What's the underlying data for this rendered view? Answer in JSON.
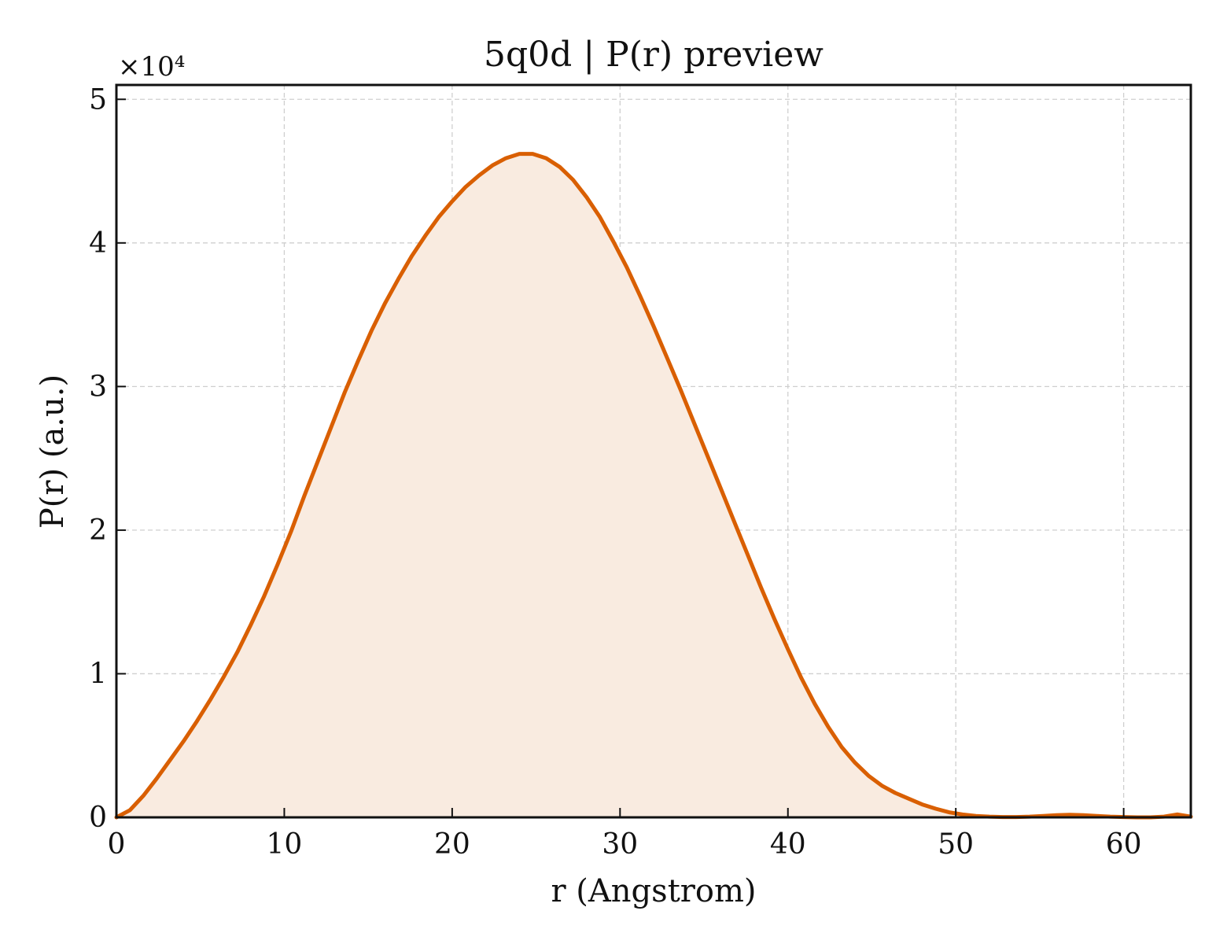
{
  "chart_data": {
    "type": "area",
    "title": "5q0d | P(r) preview",
    "xlabel": "r (Angstrom)",
    "ylabel": "P(r) (a.u.)",
    "y_offset_label": "×10⁴",
    "xlim": [
      0,
      64
    ],
    "ylim": [
      0,
      51000
    ],
    "x_ticks": [
      0,
      10,
      20,
      30,
      40,
      50,
      60
    ],
    "x_tick_labels": [
      "0",
      "10",
      "20",
      "30",
      "40",
      "50",
      "60"
    ],
    "y_ticks": [
      0,
      10000,
      20000,
      30000,
      40000,
      50000
    ],
    "y_tick_labels": [
      "0",
      "1",
      "2",
      "3",
      "4",
      "5"
    ],
    "grid": true,
    "legend": "none",
    "line_color": "#d95f02",
    "fill_color": "#f9ebe0",
    "series": [
      {
        "x": [
          0,
          0.8,
          1.6,
          2.4,
          3.2,
          4.0,
          4.8,
          5.6,
          6.4,
          7.2,
          8.0,
          8.8,
          9.6,
          10.4,
          11.2,
          12.0,
          12.8,
          13.6,
          14.4,
          15.2,
          16.0,
          16.8,
          17.6,
          18.4,
          19.2,
          20.0,
          20.8,
          21.6,
          22.4,
          23.2,
          24.0,
          24.8,
          25.6,
          26.4,
          27.2,
          28.0,
          28.8,
          29.6,
          30.4,
          31.2,
          32.0,
          32.8,
          33.6,
          34.4,
          35.2,
          36.0,
          36.8,
          37.6,
          38.4,
          39.2,
          40.0,
          40.8,
          41.6,
          42.4,
          43.2,
          44.0,
          44.8,
          45.6,
          46.4,
          47.2,
          48.0,
          48.8,
          49.6,
          50.4,
          51.2,
          52.0,
          52.8,
          53.6,
          54.4,
          55.2,
          56.0,
          56.8,
          57.6,
          58.4,
          59.2,
          60.0,
          60.8,
          61.6,
          62.4,
          63.2,
          64.0
        ],
        "y": [
          0,
          500,
          1500,
          2700,
          4000,
          5300,
          6700,
          8200,
          9800,
          11500,
          13400,
          15400,
          17600,
          19900,
          22400,
          24800,
          27200,
          29600,
          31800,
          33900,
          35800,
          37500,
          39100,
          40500,
          41800,
          42900,
          43900,
          44700,
          45400,
          45900,
          46200,
          46200,
          45900,
          45300,
          44400,
          43200,
          41800,
          40100,
          38300,
          36300,
          34200,
          32000,
          29800,
          27500,
          25200,
          22900,
          20600,
          18300,
          16000,
          13800,
          11700,
          9700,
          7900,
          6300,
          4900,
          3800,
          2900,
          2200,
          1700,
          1300,
          900,
          600,
          350,
          200,
          100,
          50,
          20,
          20,
          50,
          100,
          150,
          180,
          150,
          100,
          50,
          20,
          0,
          0,
          50,
          200,
          50
        ]
      }
    ]
  }
}
